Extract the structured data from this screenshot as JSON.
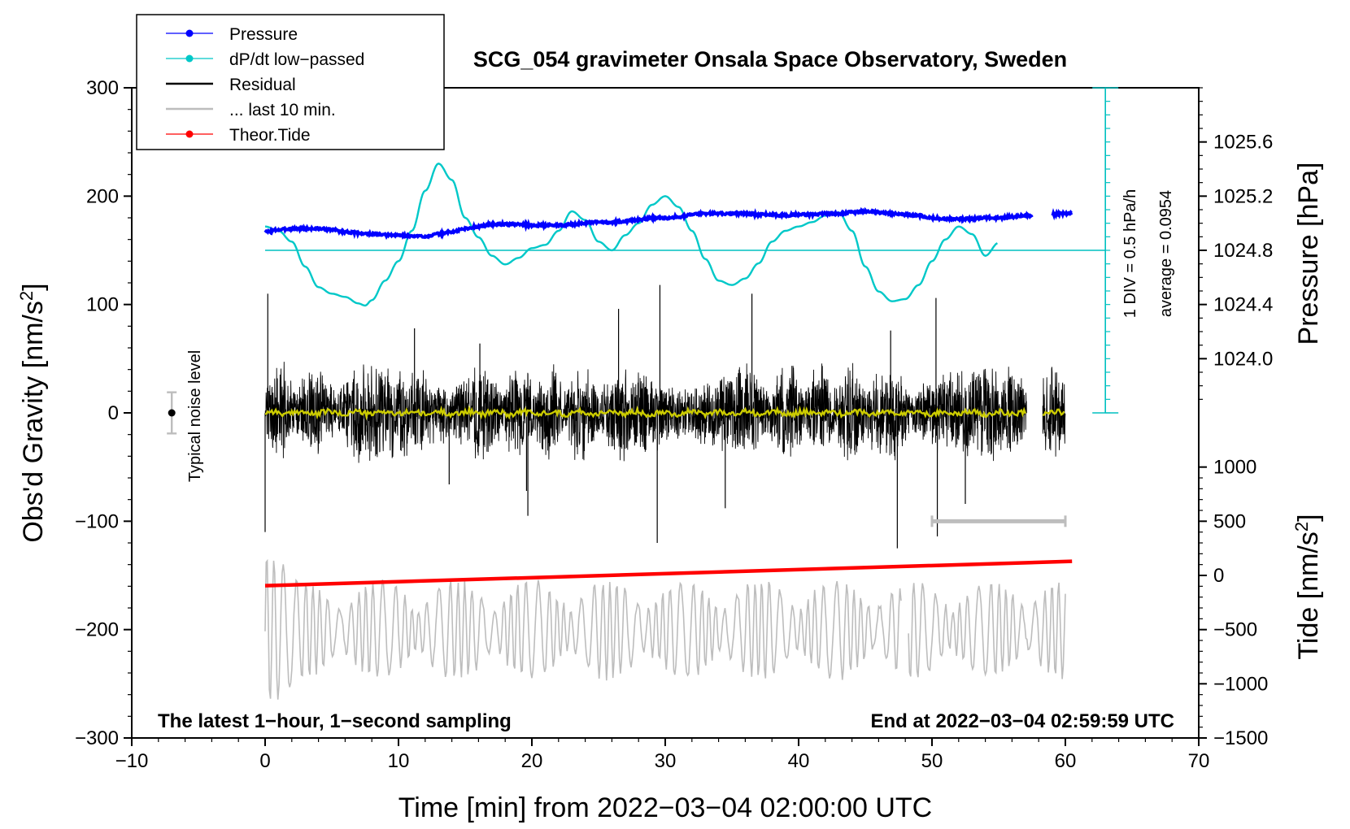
{
  "chart_data": {
    "type": "line",
    "title": "SCG_054 gravimeter Onsala Space Observatory, Sweden",
    "xlabel": "Time [min] from 2022−03−04 02:00:00 UTC",
    "ylabel_left": "Obs'd Gravity [nm/s",
    "ylabel_left_sup": "2",
    "ylabel_left_close": "]",
    "ylabel_right_pressure": "Pressure [hPa]",
    "ylabel_right_tide": "Tide [nm/s",
    "ylabel_right_tide_sup": "2",
    "ylabel_right_tide_close": "]",
    "xlim": [
      -10,
      70
    ],
    "ylim": [
      -300,
      300
    ],
    "x_ticks": [
      -10,
      0,
      10,
      20,
      30,
      40,
      50,
      60,
      70
    ],
    "x_tick_labels": [
      "−10",
      "0",
      "10",
      "20",
      "30",
      "40",
      "50",
      "60",
      "70"
    ],
    "y_ticks": [
      -300,
      -200,
      -100,
      0,
      100,
      200,
      300
    ],
    "y_tick_labels": [
      "−300",
      "−200",
      "−100",
      "0",
      "100",
      "200",
      "300"
    ],
    "pressure_axis": {
      "ticks": [
        1024.0,
        1024.4,
        1024.8,
        1025.2,
        1025.6
      ],
      "tick_labels": [
        "1024.0",
        "1024.4",
        "1024.8",
        "1025.2",
        "1025.6"
      ],
      "gravity_equivalent_at_1024_8": 150,
      "gravity_units_per_0_4_hpa": 50
    },
    "tide_axis": {
      "ticks": [
        -1500,
        -1000,
        -500,
        0,
        500,
        1000
      ],
      "tick_labels": [
        "−1500",
        "−1000",
        "−500",
        "0",
        "500",
        "1000"
      ],
      "gravity_equivalent_at_0": -150,
      "gravity_units_per_500": 50
    },
    "dpdt_scale": {
      "label_div": "1 DIV = 0.5 hPa/h",
      "label_avg": "average = 0.0954",
      "x": 63,
      "baseline_gravity": 150,
      "div_gravity_units": 12.5,
      "range_gravity": [
        0,
        300
      ]
    },
    "legend": [
      {
        "label": "Pressure",
        "color": "#0000ff",
        "marker": true
      },
      {
        "label": "dP/dt low−passed",
        "color": "#00c8c8",
        "marker": true
      },
      {
        "label": "Residual",
        "color": "#000000",
        "marker": false
      },
      {
        "label": "... last 10 min.",
        "color": "#bdbdbd",
        "marker": false
      },
      {
        "label": "Theor.Tide",
        "color": "#ff0000",
        "marker": true
      }
    ],
    "noise_label": "Typical noise level",
    "noise_bar": {
      "x": -7,
      "center": 0,
      "half_range": 19
    },
    "last10_bar": {
      "x_start": 50,
      "x_end": 60,
      "y": -100
    },
    "footer_left": "The latest 1−hour, 1−second sampling",
    "footer_right": "End at 2022−03−04 02:59:59 UTC",
    "series": [
      {
        "name": "Pressure",
        "color": "#0000ff",
        "unit": "gravity-equivalent",
        "x": [
          0,
          1,
          2,
          3,
          4,
          5,
          6,
          7,
          8,
          9,
          10,
          11,
          12,
          13,
          14,
          15,
          16,
          17,
          18,
          19,
          20,
          21,
          22,
          23,
          24,
          25,
          26,
          27,
          28,
          29,
          30,
          31,
          32,
          33,
          34,
          35,
          36,
          37,
          38,
          39,
          40,
          41,
          42,
          43,
          44,
          45,
          46,
          47,
          48,
          49,
          50,
          51,
          52,
          53,
          54,
          55,
          56,
          57,
          57.5,
          58.5,
          59,
          60,
          60.5
        ],
        "values": [
          167,
          169,
          170,
          170,
          170,
          169,
          167,
          166,
          165,
          164,
          164,
          163,
          163,
          165,
          167,
          170,
          172,
          174,
          174,
          174,
          173,
          173,
          173,
          174,
          175,
          176,
          176,
          177,
          178,
          180,
          180,
          181,
          183,
          184,
          184,
          184,
          184,
          183,
          183,
          182,
          183,
          183,
          184,
          184,
          185,
          186,
          185,
          184,
          183,
          182,
          180,
          179,
          179,
          179,
          180,
          180,
          181,
          182,
          181,
          null,
          183,
          184,
          185
        ]
      },
      {
        "name": "dP/dt low-passed",
        "color": "#00c8c8",
        "unit": "gravity-equivalent",
        "x": [
          0,
          1,
          2,
          3,
          4,
          5,
          6,
          7,
          7.5,
          8,
          9,
          10,
          11,
          12,
          13,
          14,
          15,
          16,
          17,
          18,
          19,
          20,
          21,
          22,
          23,
          24,
          25,
          26,
          27,
          28,
          29,
          30,
          31,
          32,
          33,
          34,
          35,
          36,
          37,
          38,
          39,
          40,
          41,
          42,
          43,
          44,
          45,
          46,
          47,
          48,
          49,
          50,
          51,
          52,
          53,
          54,
          55
        ],
        "values": [
          172,
          168,
          158,
          135,
          116,
          110,
          107,
          101,
          99,
          104,
          122,
          140,
          168,
          205,
          230,
          215,
          180,
          162,
          145,
          137,
          143,
          152,
          155,
          168,
          186,
          178,
          158,
          150,
          164,
          175,
          192,
          200,
          190,
          168,
          142,
          122,
          118,
          124,
          138,
          158,
          168,
          172,
          176,
          182,
          185,
          168,
          135,
          112,
          103,
          105,
          118,
          140,
          160,
          172,
          165,
          145,
          157
        ]
      },
      {
        "name": "Residual",
        "color": "#000000",
        "x_range": [
          0,
          60
        ],
        "gap": [
          57.1,
          58.3
        ],
        "amplitude": 50,
        "spikes": [
          [
            0,
            -110
          ],
          [
            0.2,
            110
          ],
          [
            11.2,
            78
          ],
          [
            13.8,
            -66
          ],
          [
            16.1,
            64
          ],
          [
            19.6,
            -72
          ],
          [
            19.7,
            -95
          ],
          [
            26.5,
            96
          ],
          [
            29.4,
            -120
          ],
          [
            29.6,
            118
          ],
          [
            34.5,
            -88
          ],
          [
            36.5,
            110
          ],
          [
            46.9,
            76
          ],
          [
            47.4,
            -125
          ],
          [
            50.3,
            106
          ],
          [
            50.4,
            -114
          ],
          [
            52.5,
            -84
          ]
        ]
      },
      {
        "name": "Residual low-passed",
        "color": "#cccc00",
        "x_range": [
          0,
          60
        ],
        "gap": [
          57.1,
          58.3
        ],
        "mean": 0
      },
      {
        "name": "... last 10 min.",
        "color": "#bdbdbd",
        "x_range": [
          0,
          60
        ],
        "gap": [
          47.7,
          48.2
        ],
        "baseline": -200,
        "amplitude": 45
      },
      {
        "name": "Theor.Tide",
        "color": "#ff0000",
        "unit": "nm/s2",
        "x": [
          0,
          60.5
        ],
        "values": [
          -95,
          130
        ]
      }
    ]
  }
}
